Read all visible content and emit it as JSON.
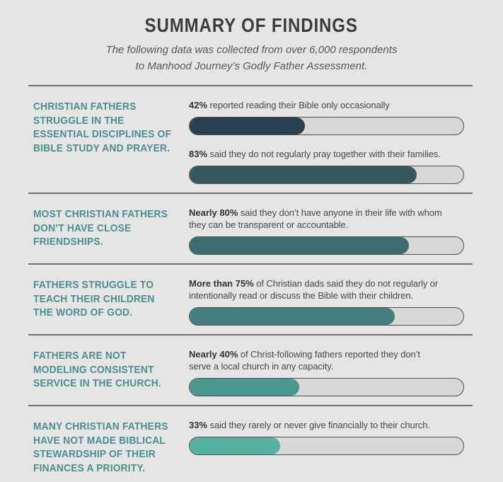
{
  "header": {
    "title": "SUMMARY OF FINDINGS",
    "subtitle_line1": "The following data was collected from over 6,000 respondents",
    "subtitle_line2": "to Manhood Journey’s Godly Father Assessment."
  },
  "colors": {
    "page_bg": "#e5e6e4",
    "title_color": "#383c3f",
    "subtitle_color": "#55585a",
    "divider_color": "#6e7271",
    "heading_color": "#4a8d94",
    "body_color": "#46494b",
    "body_strong_color": "#2f3336",
    "track_color": "#d8d9d6",
    "track_border_color": "#4c4f4e"
  },
  "sections": [
    {
      "heading_lines": [
        "CHRISTIAN FATHERS",
        "STRUGGLE IN THE",
        "ESSENTIAL DISCIPLINES OF",
        "BIBLE STUDY AND PRAYER."
      ],
      "stats": [
        {
          "highlight": "42%",
          "line1_rest": " reported reading their Bible only occasionally",
          "line2": "",
          "percent": 42,
          "bar_color": "#2a3f4f"
        },
        {
          "highlight": "83%",
          "line1_rest": " said they do not regularly pray together with their families.",
          "line2": "",
          "percent": 83,
          "bar_color": "#35595f"
        }
      ]
    },
    {
      "heading_lines": [
        "MOST CHRISTIAN FATHERS",
        "DON’T HAVE CLOSE",
        "FRIENDSHIPS."
      ],
      "stats": [
        {
          "highlight": "Nearly 80%",
          "line1_rest": " said they don’t have anyone in their life with whom",
          "line2": "they can be transparent or accountable.",
          "percent": 80,
          "bar_color": "#3d6b70"
        }
      ]
    },
    {
      "heading_lines": [
        "FATHERS STRUGGLE TO",
        "TEACH THEIR CHILDREN",
        "THE WORD OF GOD."
      ],
      "stats": [
        {
          "highlight": "More than 75%",
          "line1_rest": " of Christian dads said they do not regularly or",
          "line2": "intentionally read or discuss the Bible with their children.",
          "percent": 75,
          "bar_color": "#447e80"
        }
      ]
    },
    {
      "heading_lines": [
        "FATHERS ARE NOT",
        "MODELING CONSISTENT",
        "SERVICE IN THE CHURCH."
      ],
      "stats": [
        {
          "highlight": "Nearly 40%",
          "line1_rest": " of Christ-following fathers reported they don’t",
          "line2": "serve a local church in any capacity.",
          "percent": 40,
          "bar_color": "#4a998f"
        }
      ]
    },
    {
      "heading_lines": [
        "MANY CHRISTIAN FATHERS",
        "HAVE NOT MADE BIBLICAL",
        "STEWARDSHIP OF THEIR",
        "FINANCES A PRIORITY."
      ],
      "stats": [
        {
          "highlight": "33%",
          "line1_rest": " said they rarely or never give financially to their church.",
          "line2": "",
          "percent": 33,
          "bar_color": "#55b2a2"
        }
      ]
    }
  ],
  "chart_data": {
    "type": "bar",
    "orientation": "horizontal",
    "title": "SUMMARY OF FINDINGS",
    "subtitle": "The following data was collected from over 6,000 respondents to Manhood Journey’s Godly Father Assessment.",
    "xlim": [
      0,
      100
    ],
    "unit": "%",
    "grid": false,
    "legend": false,
    "bars": [
      {
        "group": "Christian fathers struggle in the essential disciplines of Bible study and prayer.",
        "label": "42% reported reading their Bible only occasionally",
        "value": 42,
        "color": "#2a3f4f"
      },
      {
        "group": "Christian fathers struggle in the essential disciplines of Bible study and prayer.",
        "label": "83% said they do not regularly pray together with their families.",
        "value": 83,
        "color": "#35595f"
      },
      {
        "group": "Most Christian fathers don’t have close friendships.",
        "label": "Nearly 80% said they don’t have anyone in their life with whom they can be transparent or accountable.",
        "value": 80,
        "color": "#3d6b70"
      },
      {
        "group": "Fathers struggle to teach their children the Word of God.",
        "label": "More than 75% of Christian dads said they do not regularly or intentionally read or discuss the Bible with their children.",
        "value": 75,
        "color": "#447e80"
      },
      {
        "group": "Fathers are not modeling consistent service in the church.",
        "label": "Nearly 40% of Christ-following fathers reported they don’t serve a local church in any capacity.",
        "value": 40,
        "color": "#4a998f"
      },
      {
        "group": "Many Christian fathers have not made biblical stewardship of their finances a priority.",
        "label": "33% said they rarely or never give financially to their church.",
        "value": 33,
        "color": "#55b2a2"
      }
    ]
  }
}
